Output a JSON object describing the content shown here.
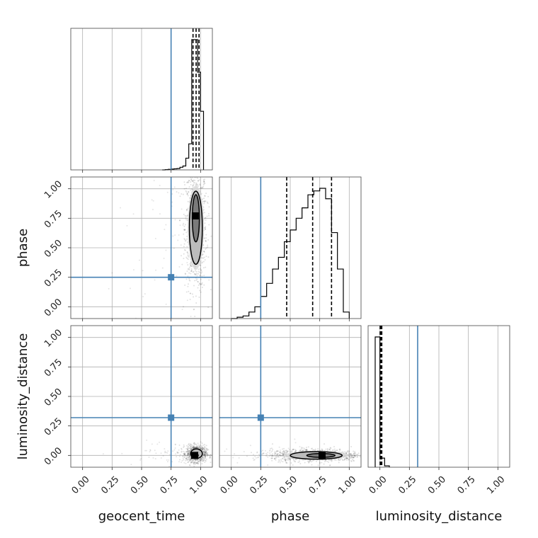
{
  "chart_data": {
    "type": "corner",
    "parameters": [
      "geocent_time",
      "phase",
      "luminosity_distance"
    ],
    "tick_values": [
      0.0,
      0.25,
      0.5,
      0.75,
      1.0
    ],
    "tick_labels": [
      "0.00",
      "0.25",
      "0.50",
      "0.75",
      "1.00"
    ],
    "axis_range": [
      -0.1,
      1.1
    ],
    "grid": true,
    "truths": {
      "geocent_time": 0.75,
      "phase": 0.25,
      "luminosity_distance": 0.32
    },
    "quantiles": {
      "geocent_time": [
        0.936,
        0.962,
        0.987
      ],
      "phase": [
        0.47,
        0.69,
        0.85
      ],
      "luminosity_distance": [
        0.002,
        0.008,
        0.016
      ]
    },
    "histograms": {
      "geocent_time": {
        "bin_edges": [
          0.675,
          0.7,
          0.725,
          0.75,
          0.775,
          0.8,
          0.825,
          0.85,
          0.875,
          0.9,
          0.925,
          0.95,
          0.975,
          1.0,
          1.025
        ],
        "counts": [
          0,
          0.002,
          0.004,
          0.006,
          0.008,
          0.01,
          0.02,
          0.03,
          0.09,
          0.2,
          1.0,
          1.0,
          0.75,
          0.45
        ]
      },
      "phase": {
        "bin_edges": [
          0.0,
          0.05,
          0.1,
          0.15,
          0.2,
          0.25,
          0.3,
          0.35,
          0.4,
          0.45,
          0.5,
          0.55,
          0.6,
          0.65,
          0.7,
          0.75,
          0.8,
          0.85,
          0.9,
          0.95,
          1.0
        ],
        "counts": [
          0.0,
          0.01,
          0.02,
          0.05,
          0.09,
          0.17,
          0.27,
          0.38,
          0.47,
          0.59,
          0.68,
          0.77,
          0.85,
          0.95,
          0.98,
          1.0,
          0.92,
          0.66,
          0.38,
          0.05
        ]
      },
      "luminosity_distance": {
        "bin_edges": [
          -0.04,
          0.0,
          0.04,
          0.08
        ],
        "counts": [
          1.0,
          0.07,
          0.01
        ]
      }
    },
    "pairs": [
      {
        "x": "geocent_time",
        "y": "phase",
        "mode": [
          0.955,
          0.77
        ],
        "contour_outer": {
          "cx": 0.96,
          "cy": 0.67,
          "rx": 0.055,
          "ry": 0.31
        },
        "contour_inner": {
          "cx": 0.96,
          "cy": 0.75,
          "rx": 0.03,
          "ry": 0.2
        }
      },
      {
        "x": "geocent_time",
        "y": "luminosity_distance",
        "mode": [
          0.95,
          0.0
        ],
        "contour_outer": {
          "cx": 0.965,
          "cy": 0.015,
          "rx": 0.05,
          "ry": 0.04
        },
        "contour_inner": {
          "cx": 0.955,
          "cy": 0.0,
          "rx": 0.025,
          "ry": 0.018
        }
      },
      {
        "x": "phase",
        "y": "luminosity_distance",
        "mode": [
          0.77,
          0.0
        ],
        "contour_outer": {
          "cx": 0.72,
          "cy": 0.0,
          "rx": 0.22,
          "ry": 0.032
        },
        "contour_inner": {
          "cx": 0.76,
          "cy": 0.0,
          "rx": 0.12,
          "ry": 0.016
        }
      }
    ],
    "colors": {
      "truth": "#4682b4",
      "samples": "#000000",
      "grid": "#b0b0b0"
    }
  }
}
